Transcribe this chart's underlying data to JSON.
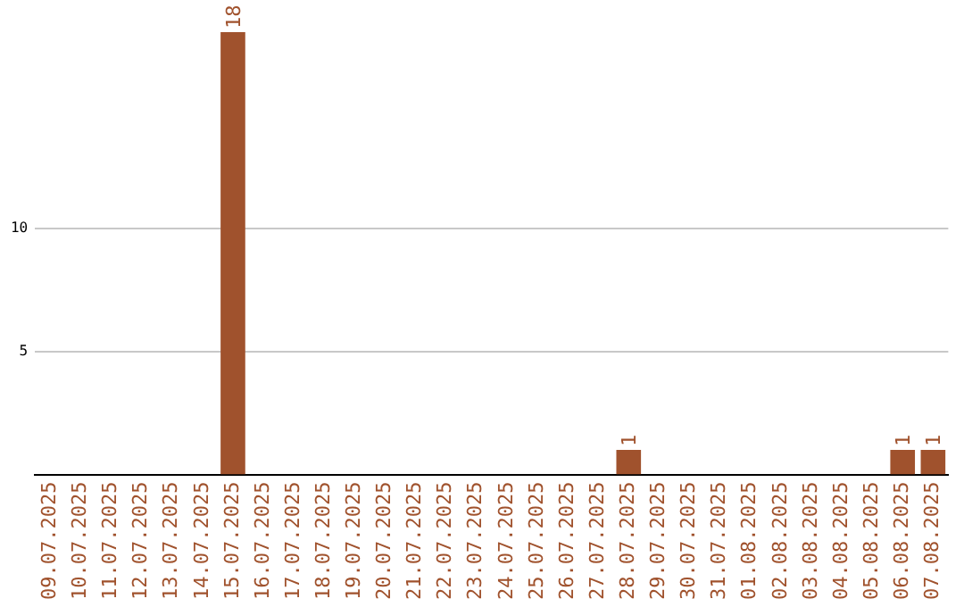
{
  "chart_data": {
    "type": "bar",
    "categories": [
      "09.07.2025",
      "10.07.2025",
      "11.07.2025",
      "12.07.2025",
      "13.07.2025",
      "14.07.2025",
      "15.07.2025",
      "16.07.2025",
      "17.07.2025",
      "18.07.2025",
      "19.07.2025",
      "20.07.2025",
      "21.07.2025",
      "22.07.2025",
      "23.07.2025",
      "24.07.2025",
      "25.07.2025",
      "26.07.2025",
      "27.07.2025",
      "28.07.2025",
      "29.07.2025",
      "30.07.2025",
      "31.07.2025",
      "01.08.2025",
      "02.08.2025",
      "03.08.2025",
      "04.08.2025",
      "05.08.2025",
      "06.08.2025",
      "07.08.2025"
    ],
    "values": [
      0,
      0,
      0,
      0,
      0,
      0,
      18,
      0,
      0,
      0,
      0,
      0,
      0,
      0,
      0,
      0,
      0,
      0,
      0,
      1,
      0,
      0,
      0,
      0,
      0,
      0,
      0,
      0,
      1,
      1
    ],
    "value_labels": [
      null,
      null,
      null,
      null,
      null,
      null,
      "18",
      null,
      null,
      null,
      null,
      null,
      null,
      null,
      null,
      null,
      null,
      null,
      null,
      "1",
      null,
      null,
      null,
      null,
      null,
      null,
      null,
      null,
      "1",
      "1"
    ],
    "color": "#a0522d",
    "ylim": [
      0,
      18
    ],
    "yticks": [
      5,
      10
    ],
    "grid": "y",
    "legend": false
  }
}
